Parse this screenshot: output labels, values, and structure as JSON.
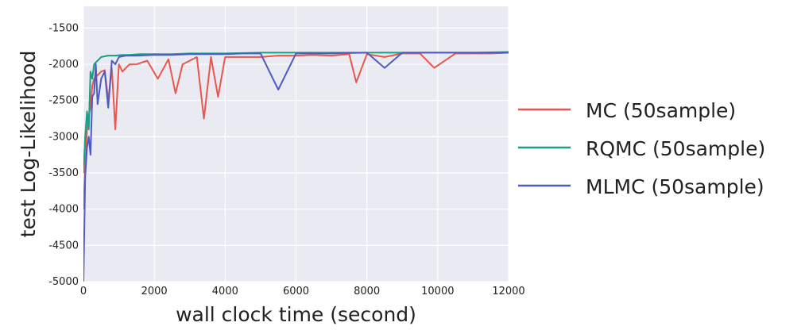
{
  "chart_data": {
    "type": "line",
    "title": "",
    "xlabel": "wall clock time (second)",
    "ylabel": "test Log-Likelihood",
    "xlim": [
      0,
      12000
    ],
    "ylim": [
      -5000,
      -1200
    ],
    "xticks": [
      0,
      2000,
      4000,
      6000,
      8000,
      10000,
      12000
    ],
    "yticks": [
      -5000,
      -4500,
      -4000,
      -3500,
      -3000,
      -2500,
      -2000,
      -1500
    ],
    "grid": true,
    "legend_position": "right",
    "series": [
      {
        "name": "MC (50sample)",
        "color": "#e8574c",
        "x": [
          0,
          50,
          100,
          150,
          200,
          250,
          300,
          400,
          500,
          600,
          700,
          800,
          900,
          1000,
          1100,
          1300,
          1500,
          1800,
          2100,
          2400,
          2600,
          2800,
          3000,
          3200,
          3400,
          3600,
          3800,
          4000,
          4500,
          5000,
          5500,
          6000,
          6500,
          7000,
          7500,
          7700,
          8000,
          8500,
          9000,
          9500,
          9900,
          10500,
          11000,
          11500,
          12000
        ],
        "y": [
          -4000,
          -3400,
          -2900,
          -2700,
          -2600,
          -2300,
          -2200,
          -2150,
          -2100,
          -2080,
          -2500,
          -2050,
          -2900,
          -2000,
          -2100,
          -2000,
          -2000,
          -1950,
          -2200,
          -1930,
          -2400,
          -2000,
          -1950,
          -1900,
          -2750,
          -1900,
          -2450,
          -1900,
          -1900,
          -1900,
          -1880,
          -1880,
          -1870,
          -1880,
          -1860,
          -2250,
          -1860,
          -1900,
          -1850,
          -1850,
          -2050,
          -1850,
          -1850,
          -1850,
          -1840
        ]
      },
      {
        "name": "RQMC (50sample)",
        "color": "#1a9e86",
        "x": [
          0,
          50,
          100,
          150,
          200,
          250,
          300,
          400,
          500,
          700,
          900,
          1100,
          1300,
          1600,
          2000,
          2500,
          3000,
          3500,
          4000,
          5000,
          6000,
          7000,
          8000,
          9000,
          10000,
          11000,
          12000
        ],
        "y": [
          -3500,
          -3000,
          -2650,
          -2900,
          -2100,
          -2200,
          -2000,
          -1950,
          -1900,
          -1880,
          -1880,
          -1870,
          -1870,
          -1860,
          -1860,
          -1860,
          -1850,
          -1850,
          -1850,
          -1840,
          -1840,
          -1840,
          -1840,
          -1840,
          -1840,
          -1840,
          -1830
        ]
      },
      {
        "name": "MLMC (50sample)",
        "color": "#4e5cc0",
        "x": [
          0,
          50,
          100,
          150,
          200,
          250,
          300,
          350,
          400,
          500,
          600,
          700,
          800,
          900,
          1000,
          1200,
          1500,
          2000,
          2500,
          3000,
          3500,
          4000,
          4500,
          5000,
          5500,
          6000,
          7000,
          8000,
          8500,
          9000,
          10000,
          11000,
          12000
        ],
        "y": [
          -5000,
          -3550,
          -3150,
          -3000,
          -3250,
          -2450,
          -2400,
          -2000,
          -2550,
          -2200,
          -2100,
          -2600,
          -1950,
          -2000,
          -1900,
          -1880,
          -1880,
          -1870,
          -1870,
          -1860,
          -1860,
          -1860,
          -1850,
          -1850,
          -2350,
          -1850,
          -1850,
          -1840,
          -2050,
          -1840,
          -1840,
          -1840,
          -1840
        ]
      }
    ]
  }
}
